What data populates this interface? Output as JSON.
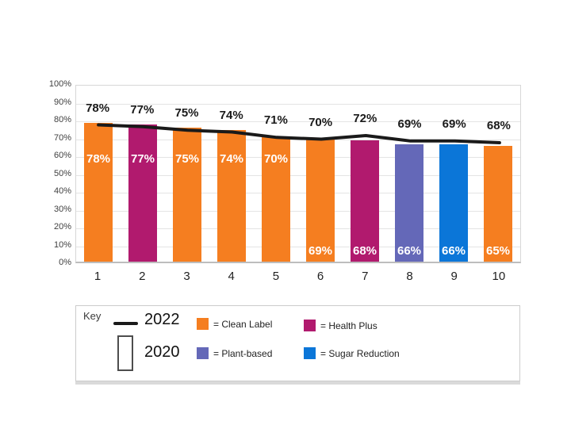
{
  "chart_data": {
    "type": "bar",
    "subtype": "bar-with-line-overlay",
    "title": "",
    "xlabel": "",
    "ylabel": "",
    "ylim": [
      0,
      100
    ],
    "ytick_step": 10,
    "ytick_labels": [
      "0%",
      "10%",
      "20%",
      "30%",
      "40%",
      "50%",
      "60%",
      "70%",
      "80%",
      "90%",
      "100%"
    ],
    "grid": true,
    "categories": [
      "1",
      "2",
      "3",
      "4",
      "5",
      "6",
      "7",
      "8",
      "9",
      "10"
    ],
    "series": [
      {
        "name": "2020",
        "type": "bar",
        "values": [
          78,
          77,
          75,
          74,
          70,
          69,
          68,
          66,
          66,
          65
        ]
      },
      {
        "name": "2022",
        "type": "line",
        "values": [
          78,
          77,
          75,
          74,
          71,
          70,
          72,
          69,
          69,
          68
        ]
      }
    ],
    "bars": [
      {
        "x": "1",
        "value_2020": 78,
        "label_2020": "78%",
        "value_2022": 78,
        "label_2022": "78%",
        "category": "clean_label"
      },
      {
        "x": "2",
        "value_2020": 77,
        "label_2020": "77%",
        "value_2022": 77,
        "label_2022": "77%",
        "category": "health_plus"
      },
      {
        "x": "3",
        "value_2020": 75,
        "label_2020": "75%",
        "value_2022": 75,
        "label_2022": "75%",
        "category": "clean_label"
      },
      {
        "x": "4",
        "value_2020": 74,
        "label_2020": "74%",
        "value_2022": 74,
        "label_2022": "74%",
        "category": "clean_label"
      },
      {
        "x": "5",
        "value_2020": 70,
        "label_2020": "70%",
        "value_2022": 71,
        "label_2022": "71%",
        "category": "clean_label"
      },
      {
        "x": "6",
        "value_2020": 69,
        "label_2020": "69%",
        "value_2022": 70,
        "label_2022": "70%",
        "category": "clean_label"
      },
      {
        "x": "7",
        "value_2020": 68,
        "label_2020": "68%",
        "value_2022": 72,
        "label_2022": "72%",
        "category": "health_plus"
      },
      {
        "x": "8",
        "value_2020": 66,
        "label_2020": "66%",
        "value_2022": 69,
        "label_2022": "69%",
        "category": "plant_based"
      },
      {
        "x": "9",
        "value_2020": 66,
        "label_2020": "66%",
        "value_2022": 69,
        "label_2022": "69%",
        "category": "sugar_reduction"
      },
      {
        "x": "10",
        "value_2020": 65,
        "label_2020": "65%",
        "value_2022": 68,
        "label_2022": "68%",
        "category": "clean_label"
      }
    ],
    "colors": {
      "clean_label": "#F57E20",
      "health_plus": "#B11A6E",
      "plant_based": "#6468B8",
      "sugar_reduction": "#0B76D8",
      "line_2022": "#1a1a1a"
    },
    "legend_position": "bottom"
  },
  "legend": {
    "title": "Key",
    "line_series_label": "2022",
    "bar_series_label": "2020",
    "items": [
      {
        "label": "= Clean Label",
        "color": "#F57E20",
        "key": "clean_label"
      },
      {
        "label": "= Health Plus",
        "color": "#B11A6E",
        "key": "health_plus"
      },
      {
        "label": "= Plant-based",
        "color": "#6468B8",
        "key": "plant_based"
      },
      {
        "label": "= Sugar Reduction",
        "color": "#0B76D8",
        "key": "sugar_reduction"
      }
    ]
  }
}
